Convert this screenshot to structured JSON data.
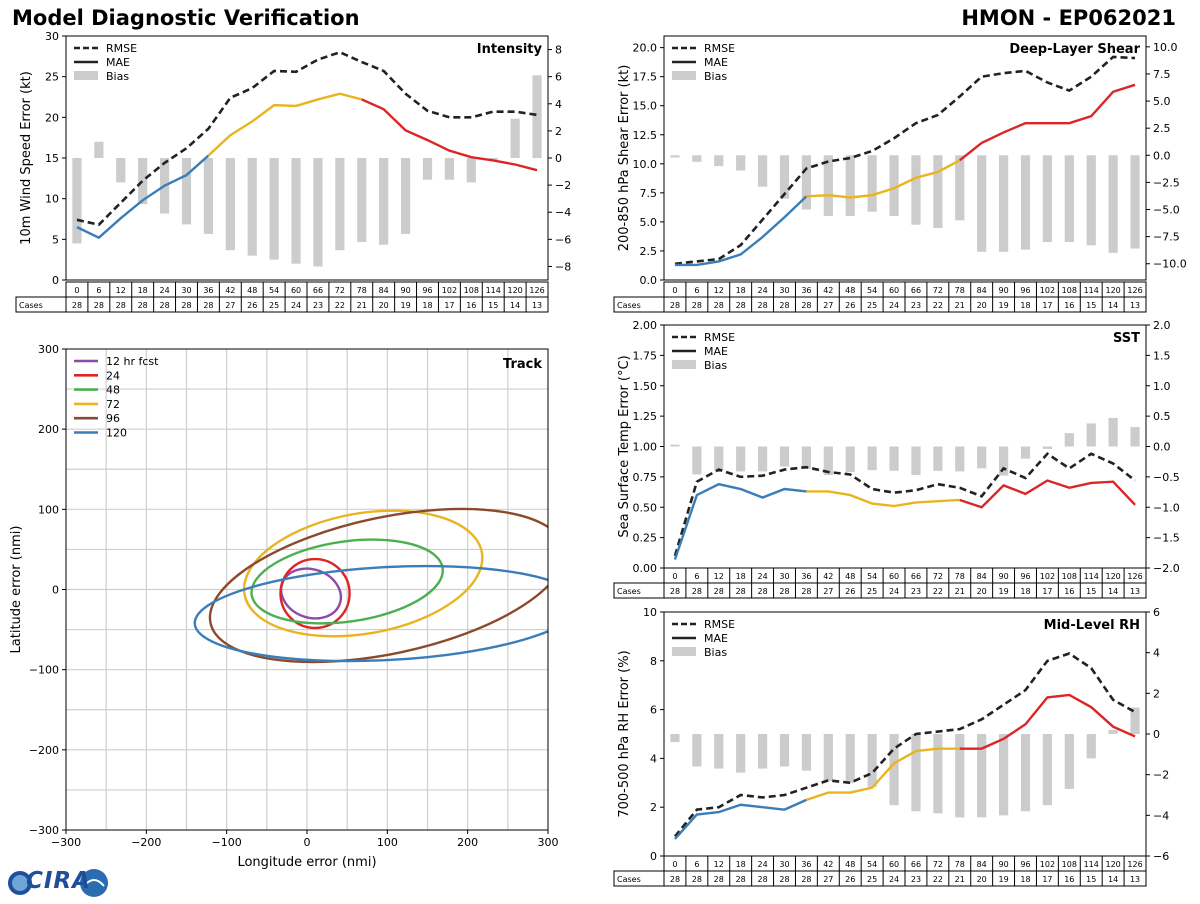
{
  "header": {
    "title": "Model Diagnostic Verification",
    "storm": "HMON - EP062021"
  },
  "logo": {
    "text": "CIRA"
  },
  "colors": {
    "rmse": "#222222",
    "bias": "#cccccc",
    "seg_early": "#3b7db8",
    "seg_mid": "#e8b520",
    "seg_late": "#dc2626",
    "grid": "#cfcfcf"
  },
  "table": {
    "cases_label": "Cases",
    "hours": [
      "0",
      "6",
      "12",
      "18",
      "24",
      "30",
      "36",
      "42",
      "48",
      "54",
      "60",
      "66",
      "72",
      "78",
      "84",
      "90",
      "96",
      "102",
      "108",
      "114",
      "120",
      "126"
    ],
    "cases": [
      "28",
      "28",
      "28",
      "28",
      "28",
      "28",
      "28",
      "27",
      "26",
      "25",
      "24",
      "23",
      "22",
      "21",
      "20",
      "19",
      "18",
      "17",
      "16",
      "15",
      "14",
      "13"
    ]
  },
  "chart_data": [
    {
      "id": "intensity",
      "type": "line",
      "title": "Intensity",
      "ylabel": "10m Wind Speed Error (kt)",
      "ylim": [
        0,
        30
      ],
      "yticks": [
        "0",
        "5",
        "10",
        "15",
        "20",
        "25",
        "30"
      ],
      "y2lim": [
        -9,
        9
      ],
      "y2ticks": [
        "−8",
        "−6",
        "−4",
        "−2",
        "0",
        "2",
        "4",
        "6",
        "8"
      ],
      "legend": [
        "RMSE",
        "MAE",
        "Bias"
      ],
      "rmse": [
        7.4,
        6.8,
        9.5,
        12.2,
        14.4,
        16.2,
        18.6,
        22.4,
        23.6,
        25.7,
        25.6,
        27.1,
        28.0,
        26.8,
        25.7,
        22.9,
        20.8,
        20.0,
        20.0,
        20.7,
        20.7,
        20.3
      ],
      "mae": [
        6.5,
        5.2,
        7.6,
        9.8,
        11.6,
        12.9,
        15.3,
        17.8,
        19.5,
        21.5,
        21.4,
        22.2,
        22.9,
        22.2,
        21.0,
        18.4,
        17.2,
        15.9,
        15.1,
        14.7,
        14.2,
        13.5
      ],
      "bias": [
        -6.3,
        1.2,
        -1.8,
        -3.4,
        -4.1,
        -4.9,
        -5.6,
        -6.8,
        -7.2,
        -7.5,
        -7.8,
        -8.0,
        -6.8,
        -6.2,
        -6.4,
        -5.6,
        -1.6,
        -1.6,
        -1.8,
        -0.2,
        2.9,
        6.1
      ],
      "hours": [
        "0",
        "6",
        "12",
        "18",
        "24",
        "30",
        "36",
        "42",
        "48",
        "54",
        "60",
        "66",
        "72",
        "78",
        "84",
        "90",
        "96",
        "102",
        "108",
        "114",
        "120",
        "126"
      ],
      "cases": [
        "28",
        "28",
        "28",
        "28",
        "28",
        "28",
        "28",
        "27",
        "26",
        "25",
        "24",
        "23",
        "22",
        "21",
        "20",
        "19",
        "18",
        "17",
        "16",
        "15",
        "14",
        "13"
      ]
    },
    {
      "id": "shear",
      "type": "line",
      "title": "Deep-Layer Shear",
      "ylabel": "200-850 hPa Shear Error (kt)",
      "ylim": [
        0,
        21
      ],
      "yticks": [
        "0.0",
        "2.5",
        "5.0",
        "7.5",
        "10.0",
        "12.5",
        "15.0",
        "17.5",
        "20.0"
      ],
      "y2lim": [
        -11.5,
        11
      ],
      "y2ticks": [
        "−10.0",
        "−7.5",
        "−5.0",
        "−2.5",
        "0.0",
        "2.5",
        "5.0",
        "7.5",
        "10.0"
      ],
      "legend": [
        "RMSE",
        "MAE",
        "Bias"
      ],
      "rmse": [
        1.4,
        1.6,
        1.8,
        3.0,
        5.2,
        7.4,
        9.6,
        10.2,
        10.5,
        11.1,
        12.2,
        13.5,
        14.2,
        15.8,
        17.5,
        17.8,
        18.0,
        17.0,
        16.3,
        17.5,
        19.2,
        19.1
      ],
      "mae": [
        1.3,
        1.3,
        1.6,
        2.2,
        3.7,
        5.4,
        7.2,
        7.3,
        7.1,
        7.3,
        7.9,
        8.8,
        9.3,
        10.3,
        11.8,
        12.7,
        13.5,
        13.5,
        13.5,
        14.1,
        16.2,
        16.8
      ],
      "bias": [
        -0.2,
        -0.6,
        -1.0,
        -1.4,
        -2.9,
        -4.0,
        -5.0,
        -5.6,
        -5.6,
        -5.2,
        -5.6,
        -6.4,
        -6.7,
        -6.0,
        -8.9,
        -8.9,
        -8.7,
        -8.0,
        -8.0,
        -8.3,
        -9.0,
        -8.6
      ],
      "hours": [
        "0",
        "6",
        "12",
        "18",
        "24",
        "30",
        "36",
        "42",
        "48",
        "54",
        "60",
        "66",
        "72",
        "78",
        "84",
        "90",
        "96",
        "102",
        "108",
        "114",
        "120",
        "126"
      ],
      "cases": [
        "28",
        "28",
        "28",
        "28",
        "28",
        "28",
        "28",
        "27",
        "26",
        "25",
        "24",
        "23",
        "22",
        "21",
        "20",
        "19",
        "18",
        "17",
        "16",
        "15",
        "14",
        "13"
      ]
    },
    {
      "id": "sst",
      "type": "line",
      "title": "SST",
      "ylabel": "Sea Surface Temp Error (°C)",
      "ylim": [
        0,
        2
      ],
      "yticks": [
        "0.00",
        "0.25",
        "0.50",
        "0.75",
        "1.00",
        "1.25",
        "1.50",
        "1.75",
        "2.00"
      ],
      "y2lim": [
        -2,
        2
      ],
      "y2ticks": [
        "−2.0",
        "−1.5",
        "−1.0",
        "−0.5",
        "0.0",
        "0.5",
        "1.0",
        "1.5",
        "2.0"
      ],
      "legend": [
        "RMSE",
        "MAE",
        "Bias"
      ],
      "rmse": [
        0.1,
        0.71,
        0.81,
        0.75,
        0.76,
        0.81,
        0.83,
        0.79,
        0.77,
        0.65,
        0.62,
        0.64,
        0.69,
        0.66,
        0.59,
        0.82,
        0.74,
        0.94,
        0.82,
        0.94,
        0.86,
        0.72
      ],
      "mae": [
        0.07,
        0.6,
        0.69,
        0.65,
        0.58,
        0.65,
        0.63,
        0.63,
        0.6,
        0.53,
        0.51,
        0.54,
        0.55,
        0.56,
        0.5,
        0.68,
        0.61,
        0.72,
        0.66,
        0.7,
        0.71,
        0.52
      ],
      "bias": [
        0.03,
        -0.46,
        -0.39,
        -0.41,
        -0.41,
        -0.33,
        -0.37,
        -0.47,
        -0.42,
        -0.39,
        -0.4,
        -0.47,
        -0.4,
        -0.41,
        -0.36,
        -0.48,
        -0.2,
        -0.04,
        0.22,
        0.38,
        0.47,
        0.32
      ],
      "hours": [
        "0",
        "6",
        "12",
        "18",
        "24",
        "30",
        "36",
        "42",
        "48",
        "54",
        "60",
        "66",
        "72",
        "78",
        "84",
        "90",
        "96",
        "102",
        "108",
        "114",
        "120",
        "126"
      ],
      "cases": [
        "28",
        "28",
        "28",
        "28",
        "28",
        "28",
        "28",
        "27",
        "26",
        "25",
        "24",
        "23",
        "22",
        "21",
        "20",
        "19",
        "18",
        "17",
        "16",
        "15",
        "14",
        "13"
      ]
    },
    {
      "id": "rh",
      "type": "line",
      "title": "Mid-Level RH",
      "ylabel": "700-500 hPa RH Error (%)",
      "ylim": [
        0,
        10
      ],
      "yticks": [
        "0",
        "2",
        "4",
        "6",
        "8",
        "10"
      ],
      "y2lim": [
        -6,
        6
      ],
      "y2ticks": [
        "−6",
        "−4",
        "−2",
        "0",
        "2",
        "4",
        "6"
      ],
      "legend": [
        "RMSE",
        "MAE",
        "Bias"
      ],
      "rmse": [
        0.8,
        1.9,
        2.0,
        2.5,
        2.4,
        2.5,
        2.8,
        3.1,
        3.0,
        3.4,
        4.4,
        5.0,
        5.1,
        5.2,
        5.6,
        6.2,
        6.8,
        8.0,
        8.3,
        7.7,
        6.4,
        5.9
      ],
      "mae": [
        0.7,
        1.7,
        1.8,
        2.1,
        2.0,
        1.9,
        2.3,
        2.6,
        2.6,
        2.8,
        3.8,
        4.3,
        4.4,
        4.4,
        4.4,
        4.8,
        5.4,
        6.5,
        6.6,
        6.1,
        5.3,
        4.9
      ],
      "bias": [
        -0.4,
        -1.6,
        -1.7,
        -1.9,
        -1.7,
        -1.6,
        -1.8,
        -2.3,
        -2.4,
        -2.6,
        -3.5,
        -3.8,
        -3.9,
        -4.1,
        -4.1,
        -4.0,
        -3.8,
        -3.5,
        -2.7,
        -1.2,
        0.2,
        1.3
      ],
      "hours": [
        "0",
        "6",
        "12",
        "18",
        "24",
        "30",
        "36",
        "42",
        "48",
        "54",
        "60",
        "66",
        "72",
        "78",
        "84",
        "90",
        "96",
        "102",
        "108",
        "114",
        "120",
        "126"
      ],
      "cases": [
        "28",
        "28",
        "28",
        "28",
        "28",
        "28",
        "28",
        "27",
        "26",
        "25",
        "24",
        "23",
        "22",
        "21",
        "20",
        "19",
        "18",
        "17",
        "16",
        "15",
        "14",
        "13"
      ]
    },
    {
      "id": "track",
      "type": "scatter",
      "title": "Track",
      "xlabel": "Longitude error (nmi)",
      "ylabel": "Latitude error (nmi)",
      "xlim": [
        -300,
        300
      ],
      "ylim": [
        -300,
        300
      ],
      "xticks": [
        "−300",
        "−200",
        "−100",
        "0",
        "100",
        "200",
        "300"
      ],
      "yticks": [
        "−300",
        "−200",
        "−100",
        "0",
        "100",
        "200",
        "300"
      ],
      "ellipses": [
        {
          "label": "12 hr fcst",
          "color": "#8e4aa8",
          "cx": 5,
          "cy": -5,
          "rx": 38,
          "ry": 30,
          "angle": -20
        },
        {
          "label": "24",
          "color": "#dc2626",
          "cx": 10,
          "cy": -5,
          "rx": 43,
          "ry": 43,
          "angle": 0
        },
        {
          "label": "48",
          "color": "#4caf50",
          "cx": 50,
          "cy": 10,
          "rx": 120,
          "ry": 50,
          "angle": 8
        },
        {
          "label": "72",
          "color": "#e8b520",
          "cx": 70,
          "cy": 20,
          "rx": 150,
          "ry": 75,
          "angle": 10
        },
        {
          "label": "96",
          "color": "#8b4a2b",
          "cx": 100,
          "cy": 5,
          "rx": 225,
          "ry": 85,
          "angle": 12
        },
        {
          "label": "120",
          "color": "#3b7db8",
          "cx": 100,
          "cy": -30,
          "rx": 240,
          "ry": 58,
          "angle": 3
        }
      ]
    }
  ]
}
